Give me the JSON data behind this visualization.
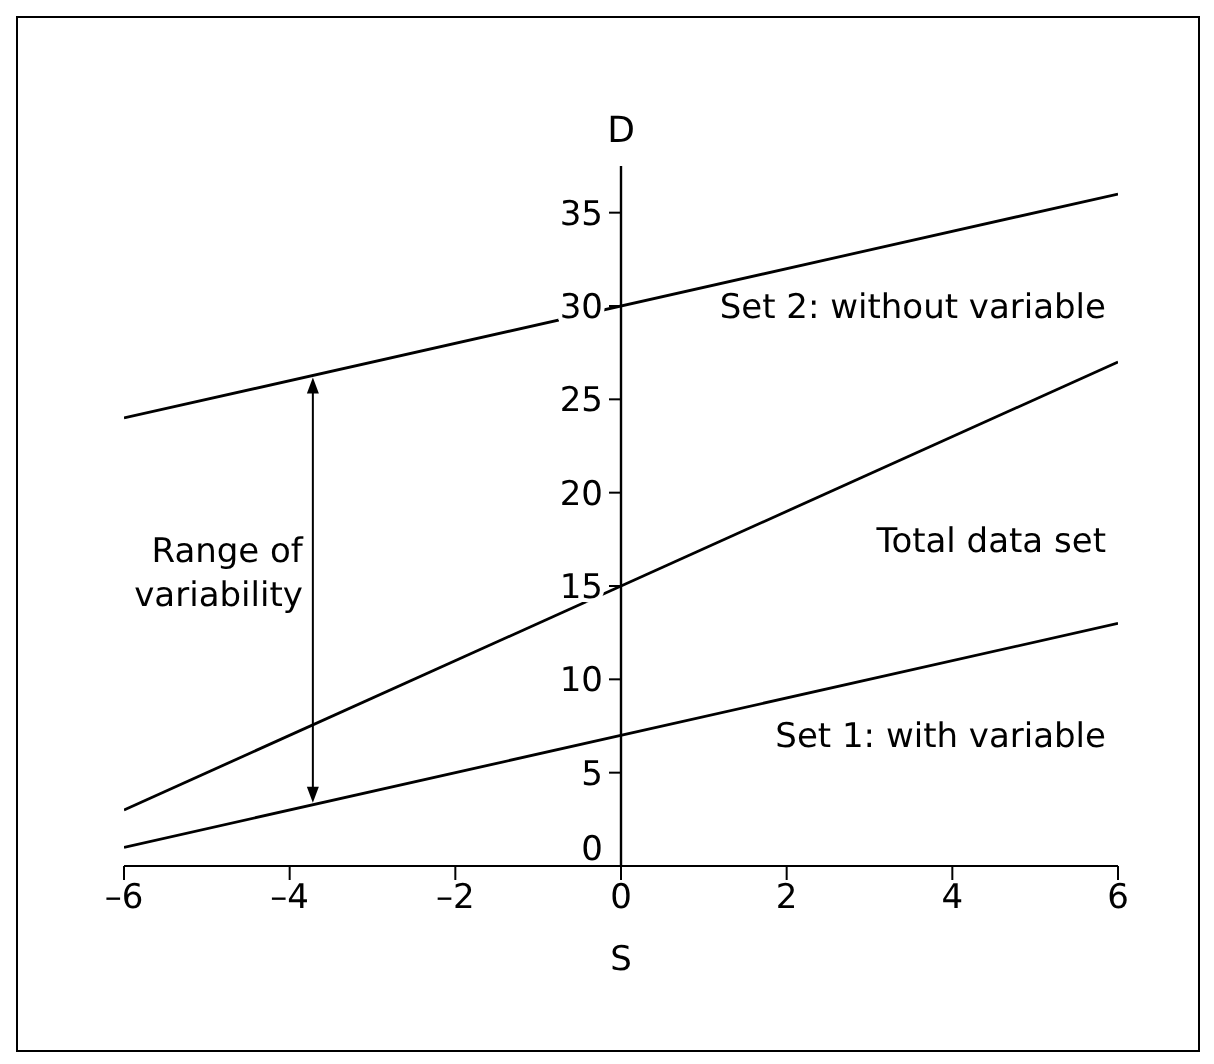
{
  "chart_data": {
    "type": "line",
    "xlabel": "S",
    "ylabel": "D",
    "x": [
      -6,
      6
    ],
    "series": [
      {
        "name": "Set 1: with variable",
        "color": "#000000",
        "values": [
          1,
          13
        ]
      },
      {
        "name": "Total data set",
        "color": "#000000",
        "values": [
          3,
          27
        ]
      },
      {
        "name": "Set 2: without variable",
        "color": "#000000",
        "values": [
          24,
          36
        ]
      }
    ],
    "xlim": [
      -6,
      6
    ],
    "xticks": [
      {
        "value": -6,
        "label": "–6"
      },
      {
        "value": -4,
        "label": "–4"
      },
      {
        "value": -2,
        "label": "–2"
      },
      0,
      2,
      4,
      6
    ],
    "ylim": [
      0,
      37.5
    ],
    "yticks": [
      0,
      5,
      10,
      15,
      20,
      25,
      30,
      35
    ],
    "annotations": [
      "Range of variability"
    ],
    "marker": "none",
    "line_style": "solid",
    "grid": false,
    "legend": false
  }
}
